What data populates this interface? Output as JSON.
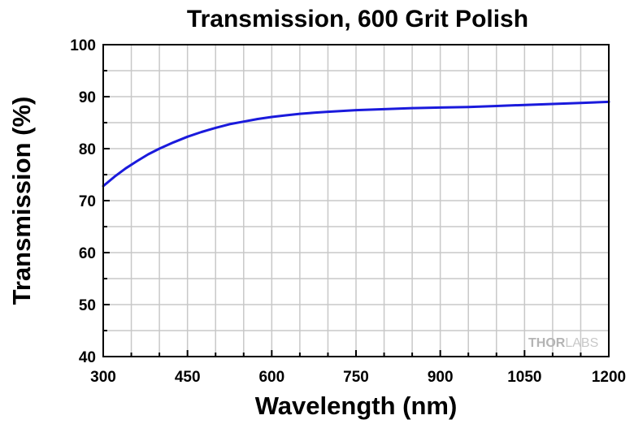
{
  "chart_data": {
    "type": "line",
    "title": "Transmission, 600 Grit Polish",
    "xlabel": "Wavelength (nm)",
    "ylabel": "Transmission (%)",
    "xlim": [
      300,
      1200
    ],
    "ylim": [
      40,
      100
    ],
    "xticks": [
      300,
      450,
      600,
      750,
      900,
      1050,
      1200
    ],
    "yticks": [
      40,
      50,
      60,
      70,
      80,
      90,
      100
    ],
    "grid": true,
    "watermark": {
      "bold": "THOR",
      "light": "LABS"
    },
    "series": [
      {
        "color": "#1a1adc",
        "x": [
          300,
          320,
          340,
          360,
          380,
          400,
          425,
          450,
          475,
          500,
          525,
          550,
          575,
          600,
          625,
          650,
          675,
          700,
          750,
          800,
          850,
          900,
          950,
          1000,
          1050,
          1100,
          1150,
          1200
        ],
        "y": [
          72.8,
          74.6,
          76.2,
          77.6,
          78.9,
          80.0,
          81.2,
          82.3,
          83.2,
          84.0,
          84.7,
          85.2,
          85.7,
          86.1,
          86.4,
          86.7,
          86.9,
          87.1,
          87.4,
          87.6,
          87.8,
          87.9,
          88.0,
          88.2,
          88.4,
          88.6,
          88.8,
          89.0
        ]
      }
    ]
  }
}
